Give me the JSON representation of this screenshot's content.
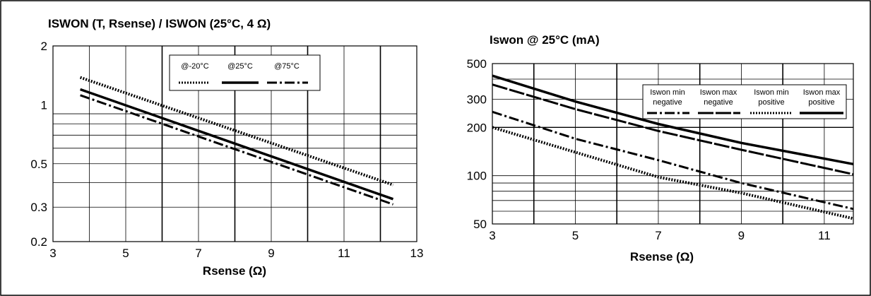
{
  "chart_data": [
    {
      "type": "line",
      "title": "ISWON (T, Rsense) / ISWON (25°C, 4 Ω)",
      "xlabel": "Rsense (Ω)",
      "ylabel": "",
      "x_scale": "linear",
      "y_scale": "log",
      "xlim": [
        3,
        13
      ],
      "ylim": [
        0.2,
        2
      ],
      "x_ticks": [
        "3",
        "5",
        "7",
        "9",
        "11",
        "13"
      ],
      "y_ticks": [
        {
          "value": 2,
          "label": "2"
        },
        {
          "value": 1,
          "label": "1"
        },
        {
          "value": 0.5,
          "label": "0.5"
        },
        {
          "value": 0.3,
          "label": "0.3"
        },
        {
          "value": 0.2,
          "label": "0.2"
        }
      ],
      "grid": true,
      "legend_position": "top-right",
      "series": [
        {
          "name": "@-20°C",
          "style": "dotted",
          "x": [
            3.75,
            12.35
          ],
          "y": [
            1.38,
            0.39
          ]
        },
        {
          "name": "@25°C",
          "style": "solid",
          "x": [
            3.75,
            12.35
          ],
          "y": [
            1.2,
            0.33
          ]
        },
        {
          "name": "@75°C",
          "style": "dashdot",
          "x": [
            3.75,
            12.35
          ],
          "y": [
            1.12,
            0.31
          ]
        }
      ]
    },
    {
      "type": "line",
      "title": "Iswon @ 25°C (mA)",
      "xlabel": "Rsense (Ω)",
      "ylabel": "",
      "x_scale": "linear",
      "y_scale": "log",
      "xlim": [
        3,
        11.7
      ],
      "ylim": [
        50,
        500
      ],
      "x_ticks": [
        "3",
        "5",
        "7",
        "9",
        "11"
      ],
      "y_ticks": [
        {
          "value": 500,
          "label": "500"
        },
        {
          "value": 300,
          "label": "300"
        },
        {
          "value": 200,
          "label": "200"
        },
        {
          "value": 100,
          "label": "100"
        },
        {
          "value": 50,
          "label": "50"
        }
      ],
      "grid": true,
      "legend_position": "top-right",
      "series": [
        {
          "name": "Iswon min negative",
          "style": "dashdot",
          "x": [
            3,
            5,
            7,
            9,
            11.7
          ],
          "y": [
            250,
            170,
            125,
            90,
            62
          ]
        },
        {
          "name": "Iswon max negative",
          "style": "longdash",
          "x": [
            3,
            5,
            7,
            9,
            11.7
          ],
          "y": [
            370,
            260,
            190,
            145,
            102
          ]
        },
        {
          "name": "Iswon min positive",
          "style": "dotted",
          "x": [
            3,
            5,
            7,
            9,
            11.7
          ],
          "y": [
            200,
            140,
            98,
            78,
            54
          ]
        },
        {
          "name": "Iswon max positive",
          "style": "solid",
          "x": [
            3,
            5,
            7,
            9,
            11.7
          ],
          "y": [
            420,
            290,
            210,
            160,
            118
          ]
        }
      ]
    }
  ]
}
